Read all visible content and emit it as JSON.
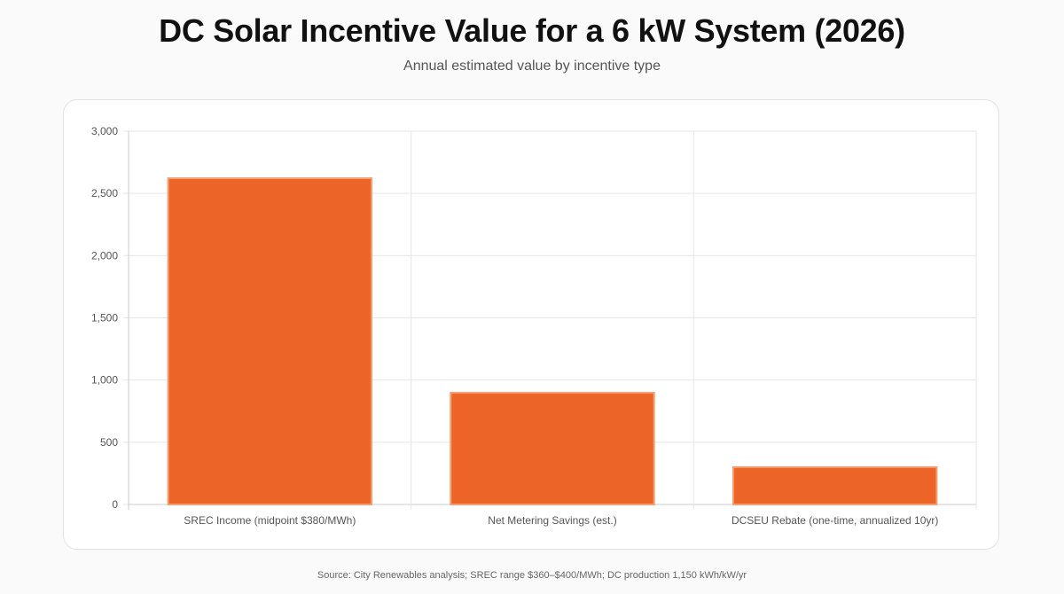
{
  "header": {
    "title": "DC Solar Incentive Value for a 6 kW System (2026)",
    "subtitle": "Annual estimated value by incentive type"
  },
  "footer": {
    "source": "Source: City Renewables analysis; SREC range $360–$400/MWh; DC production 1,150 kWh/kW/yr"
  },
  "chart_data": {
    "type": "bar",
    "title": "DC Solar Incentive Value for a 6 kW System (2026)",
    "subtitle": "Annual estimated value by incentive type",
    "xlabel": "",
    "ylabel": "",
    "categories": [
      "SREC Income (midpoint $380/MWh)",
      "Net Metering Savings (est.)",
      "DCSEU Rebate (one-time, annualized 10yr)"
    ],
    "values": [
      2622,
      898,
      300
    ],
    "ylim": [
      0,
      3000
    ],
    "yticks": [
      0,
      500,
      1000,
      1500,
      2000,
      2500,
      3000
    ],
    "ytick_labels": [
      "0",
      "500",
      "1,000",
      "1,500",
      "2,000",
      "2,500",
      "3,000"
    ],
    "grid": true,
    "legend": "none",
    "colors": {
      "bar_fill": "#ec6428",
      "bar_stroke": "#f2a070",
      "grid": "#e6e6e6",
      "axis": "#cccccc"
    }
  }
}
